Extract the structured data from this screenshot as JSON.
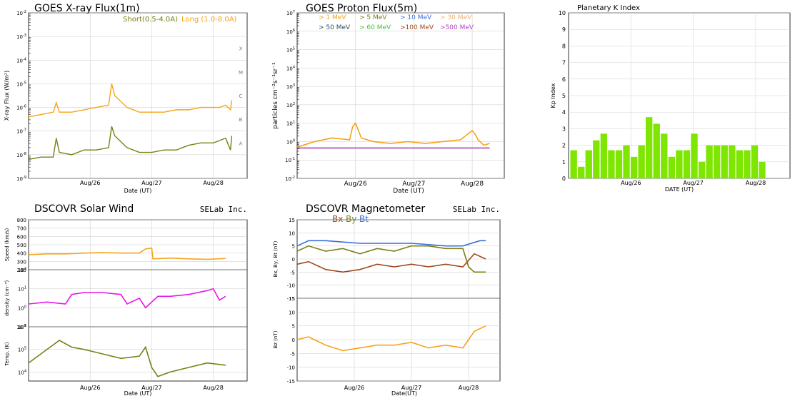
{
  "chart_data": [
    {
      "id": "xray",
      "type": "line",
      "title": "GOES X-ray Flux(1m)",
      "ylabel": "X-ray Flux (W/m²)",
      "xlabel": "Date (UT)",
      "yscale": "log",
      "ylim_exp": [
        -9,
        -2
      ],
      "xlim_days": [
        0,
        3
      ],
      "xticks": [
        {
          "x": 1,
          "label": "Aug/26"
        },
        {
          "x": 2,
          "label": "Aug/27"
        },
        {
          "x": 3,
          "label": "Aug/28"
        }
      ],
      "grid": true,
      "class_labels": [
        {
          "exp": -4,
          "label": "X"
        },
        {
          "exp": -5,
          "label": "M"
        },
        {
          "exp": -6,
          "label": "C"
        },
        {
          "exp": -7,
          "label": "B"
        },
        {
          "exp": -8,
          "label": "A"
        }
      ],
      "series": [
        {
          "name": "Short(0.5-4.0A)",
          "color": "#7a7f16",
          "x": [
            0,
            0.2,
            0.4,
            0.45,
            0.5,
            0.7,
            0.9,
            1.1,
            1.3,
            1.35,
            1.4,
            1.6,
            1.8,
            2.0,
            2.2,
            2.4,
            2.6,
            2.8,
            3.0,
            3.1,
            3.2,
            3.28,
            3.3
          ],
          "logy": [
            -8.2,
            -8.1,
            -8.1,
            -7.3,
            -7.9,
            -8.0,
            -7.8,
            -7.8,
            -7.7,
            -6.8,
            -7.2,
            -7.7,
            -7.9,
            -7.9,
            -7.8,
            -7.8,
            -7.6,
            -7.5,
            -7.5,
            -7.4,
            -7.3,
            -7.8,
            -7.2
          ]
        },
        {
          "name": "Long (1.0-8.0A)",
          "color": "#f5a31b",
          "x": [
            0,
            0.2,
            0.4,
            0.45,
            0.5,
            0.7,
            0.9,
            1.1,
            1.3,
            1.35,
            1.4,
            1.6,
            1.8,
            2.0,
            2.2,
            2.4,
            2.6,
            2.8,
            3.0,
            3.1,
            3.2,
            3.28,
            3.3
          ],
          "logy": [
            -6.4,
            -6.3,
            -6.2,
            -5.8,
            -6.2,
            -6.2,
            -6.1,
            -6.0,
            -5.9,
            -5.0,
            -5.5,
            -6.0,
            -6.2,
            -6.2,
            -6.2,
            -6.1,
            -6.1,
            -6.0,
            -6.0,
            -6.0,
            -5.9,
            -6.1,
            -5.7
          ]
        }
      ]
    },
    {
      "id": "proton",
      "type": "line",
      "title": "GOES Proton Flux(5m)",
      "ylabel": "particles cm⁻²s⁻¹sr⁻¹",
      "xlabel": "Date (UT)",
      "yscale": "log",
      "ylim_exp": [
        -2,
        7
      ],
      "xlim_days": [
        0,
        3
      ],
      "xticks": [
        {
          "x": 1,
          "label": "Aug/26"
        },
        {
          "x": 2,
          "label": "Aug/27"
        },
        {
          "x": 3,
          "label": "Aug/28"
        }
      ],
      "grid": true,
      "legend": [
        {
          "label": "> 1 MeV",
          "color": "#f5a31b"
        },
        {
          "label": "> 5 MeV",
          "color": "#7a7f16"
        },
        {
          "label": "> 10 MeV",
          "color": "#3a6fd8"
        },
        {
          "label": "> 30 MeV",
          "color": "#f0b070"
        },
        {
          "label": "> 50 MeV",
          "color": "#2f4f5f"
        },
        {
          "label": "> 60 MeV",
          "color": "#3cc63c"
        },
        {
          "label": ">100 MeV",
          "color": "#9a4a1e"
        },
        {
          "label": ">500 MeV",
          "color": "#b040c0"
        }
      ],
      "series": [
        {
          "name": "> 1 MeV",
          "color": "#f5a31b",
          "x": [
            0,
            0.3,
            0.6,
            0.9,
            0.95,
            1.0,
            1.1,
            1.3,
            1.6,
            1.9,
            2.2,
            2.5,
            2.8,
            3.0,
            3.05,
            3.1,
            3.2,
            3.3
          ],
          "logy": [
            -0.3,
            0.0,
            0.2,
            0.1,
            0.8,
            1.0,
            0.2,
            0.0,
            -0.1,
            0.0,
            -0.1,
            0.0,
            0.1,
            0.6,
            0.4,
            0.1,
            -0.2,
            -0.1
          ]
        },
        {
          "name": ">500 MeV",
          "color": "#b040c0",
          "x": [
            0,
            0.5,
            1.0,
            1.5,
            2.0,
            2.5,
            3.0,
            3.3
          ],
          "logy": [
            -0.35,
            -0.35,
            -0.35,
            -0.35,
            -0.35,
            -0.35,
            -0.35,
            -0.35
          ]
        }
      ]
    },
    {
      "id": "kp",
      "type": "bar",
      "title": "Planetary K Index",
      "ylabel": "Kp Index",
      "xlabel": "DATE (UT)",
      "ylim": [
        0,
        10
      ],
      "xlim_days": [
        0,
        3
      ],
      "xticks": [
        {
          "x": 1,
          "label": "Aug/26"
        },
        {
          "x": 2,
          "label": "Aug/27"
        },
        {
          "x": 3,
          "label": "Aug/28"
        }
      ],
      "color": "#7ee600",
      "values": [
        1.7,
        0.7,
        1.7,
        2.3,
        2.7,
        1.7,
        1.7,
        2.0,
        1.3,
        2.0,
        3.7,
        3.3,
        2.7,
        1.3,
        1.7,
        1.7,
        2.7,
        1.0,
        2.0,
        2.0,
        2.0,
        2.0,
        1.7,
        1.7,
        2.0,
        1.0
      ]
    },
    {
      "id": "solarwind",
      "type": "line",
      "title": "DSCOVR Solar Wind",
      "credit": "SELab Inc.",
      "xlabel": "Date (UT)",
      "xlim_days": [
        0,
        3
      ],
      "xticks": [
        {
          "x": 1,
          "label": "Aug/26"
        },
        {
          "x": 2,
          "label": "Aug/27"
        },
        {
          "x": 3,
          "label": "Aug/28"
        }
      ],
      "subplots": [
        {
          "ylabel": "Speed (km/s)",
          "ylim": [
            200,
            800
          ],
          "yticks": [
            200,
            300,
            400,
            500,
            600,
            700,
            800
          ],
          "color": "#f5a31b",
          "x": [
            0,
            0.3,
            0.6,
            0.9,
            1.2,
            1.5,
            1.8,
            1.9,
            2.0,
            2.02,
            2.3,
            2.6,
            2.9,
            3.2
          ],
          "y": [
            380,
            390,
            390,
            400,
            405,
            400,
            400,
            450,
            460,
            330,
            340,
            330,
            325,
            335
          ]
        },
        {
          "ylabel": "density (cm⁻³)",
          "yscale": "log",
          "ylim_exp": [
            -1,
            2
          ],
          "color": "#e815e8",
          "x": [
            0,
            0.3,
            0.6,
            0.7,
            0.9,
            1.2,
            1.5,
            1.6,
            1.8,
            1.9,
            2.0,
            2.1,
            2.3,
            2.6,
            2.9,
            3.0,
            3.1,
            3.2
          ],
          "logy": [
            0.2,
            0.3,
            0.2,
            0.7,
            0.8,
            0.8,
            0.7,
            0.2,
            0.5,
            0.0,
            0.3,
            0.6,
            0.6,
            0.7,
            0.9,
            1.0,
            0.4,
            0.6
          ]
        },
        {
          "ylabel": "Temp. (K)",
          "yscale": "log",
          "ylim_exp": [
            3.6,
            6
          ],
          "color": "#7a7f16",
          "x": [
            0,
            0.2,
            0.4,
            0.5,
            0.7,
            0.9,
            1.2,
            1.5,
            1.8,
            1.9,
            2.0,
            2.1,
            2.3,
            2.6,
            2.9,
            3.2
          ],
          "logy": [
            4.4,
            4.8,
            5.2,
            5.4,
            5.1,
            5.0,
            4.8,
            4.6,
            4.7,
            5.1,
            4.2,
            3.8,
            4.0,
            4.2,
            4.4,
            4.3
          ]
        }
      ]
    },
    {
      "id": "magnetometer",
      "type": "line",
      "title": "DSCOVR Magnetometer",
      "credit": "SELab Inc.",
      "xlabel": "Date(UT)",
      "xlim_days": [
        0,
        3
      ],
      "xticks": [
        {
          "x": 1,
          "label": "Aug/26"
        },
        {
          "x": 2,
          "label": "Aug/27"
        },
        {
          "x": 3,
          "label": "Aug/28"
        }
      ],
      "legend": [
        {
          "label": "Bx",
          "color": "#9a4a1e"
        },
        {
          "label": "By",
          "color": "#7a7f16"
        },
        {
          "label": "Bt",
          "color": "#3a6fd8"
        }
      ],
      "subplots": [
        {
          "ylabel": "Bx, By, Bt (nT)",
          "ylim": [
            -15,
            15
          ],
          "yticks": [
            -15,
            -10,
            -5,
            0,
            5,
            10,
            15
          ],
          "lines": [
            {
              "name": "Bt",
              "color": "#3a6fd8",
              "x": [
                0,
                0.2,
                0.5,
                0.8,
                1.1,
                1.4,
                1.7,
                2.0,
                2.3,
                2.6,
                2.9,
                3.2,
                3.3
              ],
              "y": [
                5,
                7,
                7,
                6.5,
                6,
                6,
                6,
                6,
                5.5,
                5,
                5,
                7,
                7
              ]
            },
            {
              "name": "By",
              "color": "#7a7f16",
              "x": [
                0,
                0.2,
                0.5,
                0.8,
                1.1,
                1.4,
                1.7,
                2.0,
                2.3,
                2.6,
                2.9,
                3.0,
                3.1,
                3.3
              ],
              "y": [
                3,
                5,
                3,
                4,
                2,
                4,
                3,
                5,
                5,
                4,
                4,
                -3,
                -5,
                -5
              ]
            },
            {
              "name": "Bx",
              "color": "#9a4a1e",
              "x": [
                0,
                0.2,
                0.5,
                0.8,
                1.1,
                1.4,
                1.7,
                2.0,
                2.3,
                2.6,
                2.9,
                3.1,
                3.3
              ],
              "y": [
                -2,
                -1,
                -4,
                -5,
                -4,
                -2,
                -3,
                -2,
                -3,
                -2,
                -3,
                2,
                0
              ]
            }
          ]
        },
        {
          "ylabel": "Bz (nT)",
          "ylim": [
            -15,
            15
          ],
          "yticks": [
            -15,
            -10,
            -5,
            0,
            5,
            10,
            15
          ],
          "lines": [
            {
              "name": "Bz",
              "color": "#f5a31b",
              "x": [
                0,
                0.2,
                0.5,
                0.8,
                1.1,
                1.4,
                1.7,
                2.0,
                2.3,
                2.6,
                2.9,
                3.1,
                3.3
              ],
              "y": [
                0,
                1,
                -2,
                -4,
                -3,
                -2,
                -2,
                -1,
                -3,
                -2,
                -3,
                3,
                5
              ]
            }
          ]
        }
      ]
    }
  ]
}
